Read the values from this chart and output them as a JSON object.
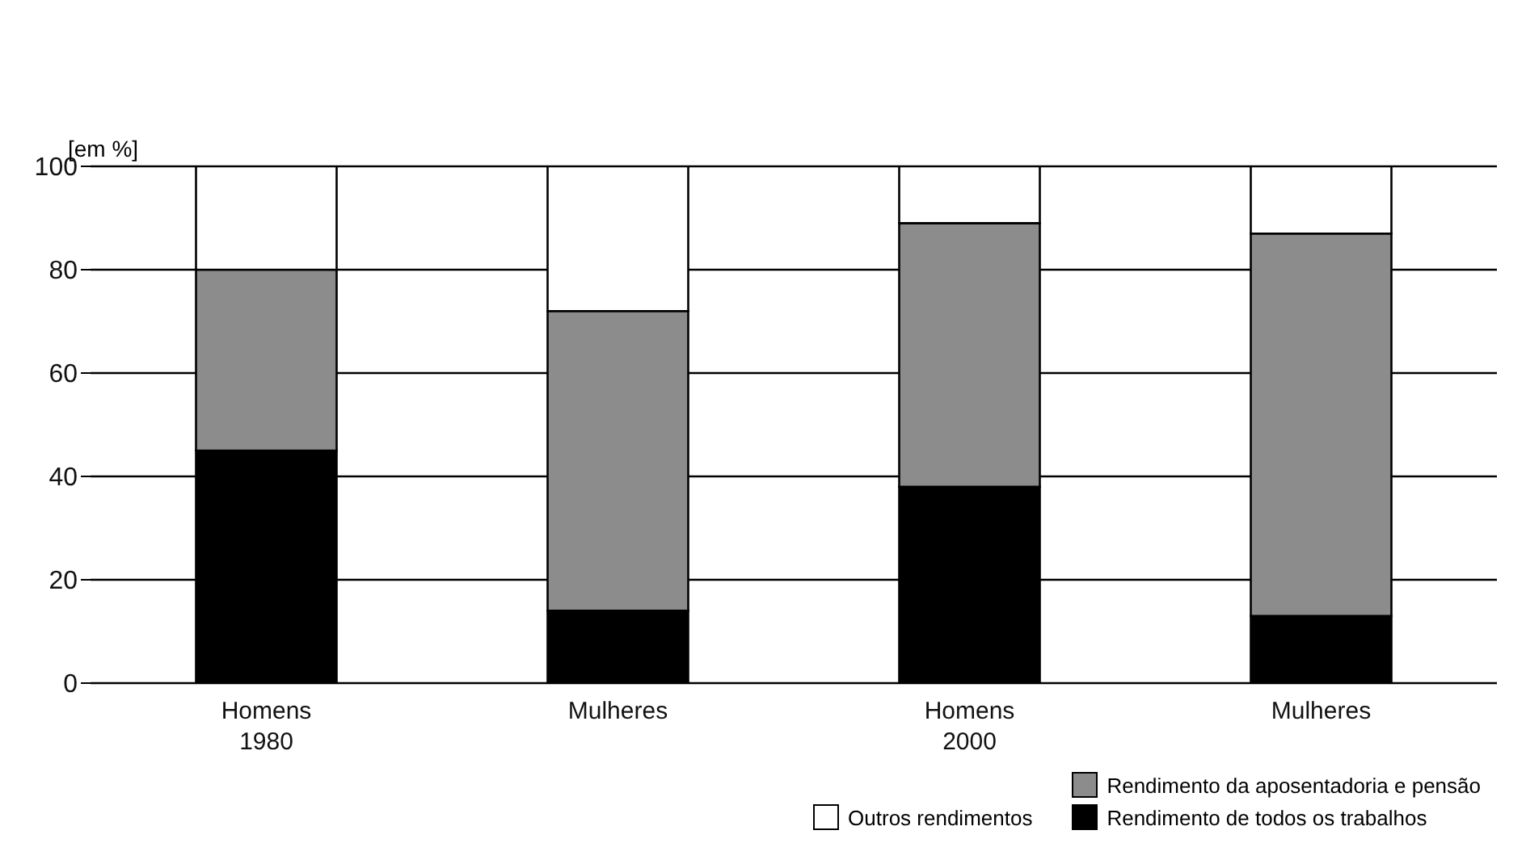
{
  "chart_data": {
    "type": "bar",
    "stacked": true,
    "ylabel": "[em %]",
    "categories": [
      "Homens\n1980",
      "Mulheres",
      "Homens\n2000",
      "Mulheres"
    ],
    "series": [
      {
        "name": "Rendimento de todos os trabalhos",
        "color": "#000000",
        "values": [
          45,
          14,
          38,
          13
        ]
      },
      {
        "name": "Rendimento da aposentadoria e pensão",
        "color": "#8c8c8c",
        "values": [
          35,
          58,
          51,
          74
        ]
      },
      {
        "name": "Outros rendimentos",
        "color": "#ffffff",
        "values": [
          20,
          28,
          11,
          13
        ]
      }
    ],
    "ylim": [
      0,
      100
    ],
    "yticks": [
      0,
      20,
      40,
      60,
      80,
      100
    ],
    "grid": "y",
    "legend": "bottom right"
  }
}
